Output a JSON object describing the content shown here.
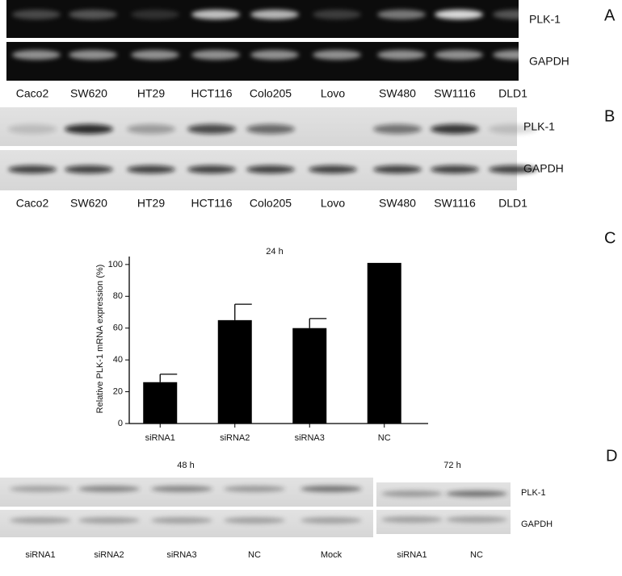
{
  "panels": {
    "A": {
      "letter": "A",
      "rows": [
        "PLK-1",
        "GAPDH"
      ],
      "lanes": [
        "Caco2",
        "SW620",
        "HT29",
        "HCT116",
        "Colo205",
        "Lovo",
        "SW480",
        "SW1116",
        "DLD1"
      ]
    },
    "B": {
      "letter": "B",
      "rows": [
        "PLK-1",
        "GAPDH"
      ],
      "lanes": [
        "Caco2",
        "SW620",
        "HT29",
        "HCT116",
        "Colo205",
        "Lovo",
        "SW480",
        "SW1116",
        "DLD1"
      ]
    },
    "C": {
      "letter": "C"
    },
    "D": {
      "letter": "D",
      "groups": [
        "48 h",
        "72 h"
      ],
      "rows": [
        "PLK-1",
        "GAPDH"
      ],
      "lanes": [
        "siRNA1",
        "siRNA2",
        "siRNA3",
        "NC",
        "Mock",
        "siRNA1",
        "NC"
      ]
    }
  },
  "chart_data": {
    "type": "bar",
    "title": "24 h",
    "y_label": "Relative PLK-1 mRNA expression (%)",
    "categories": [
      "siRNA1",
      "siRNA2",
      "siRNA3",
      "NC"
    ],
    "values": [
      26,
      65,
      60,
      101
    ],
    "errors": [
      5,
      10,
      6,
      null
    ],
    "color": "#000000",
    "ylim": [
      0,
      105
    ],
    "yticks": [
      0,
      20,
      40,
      60,
      80,
      100
    ]
  }
}
